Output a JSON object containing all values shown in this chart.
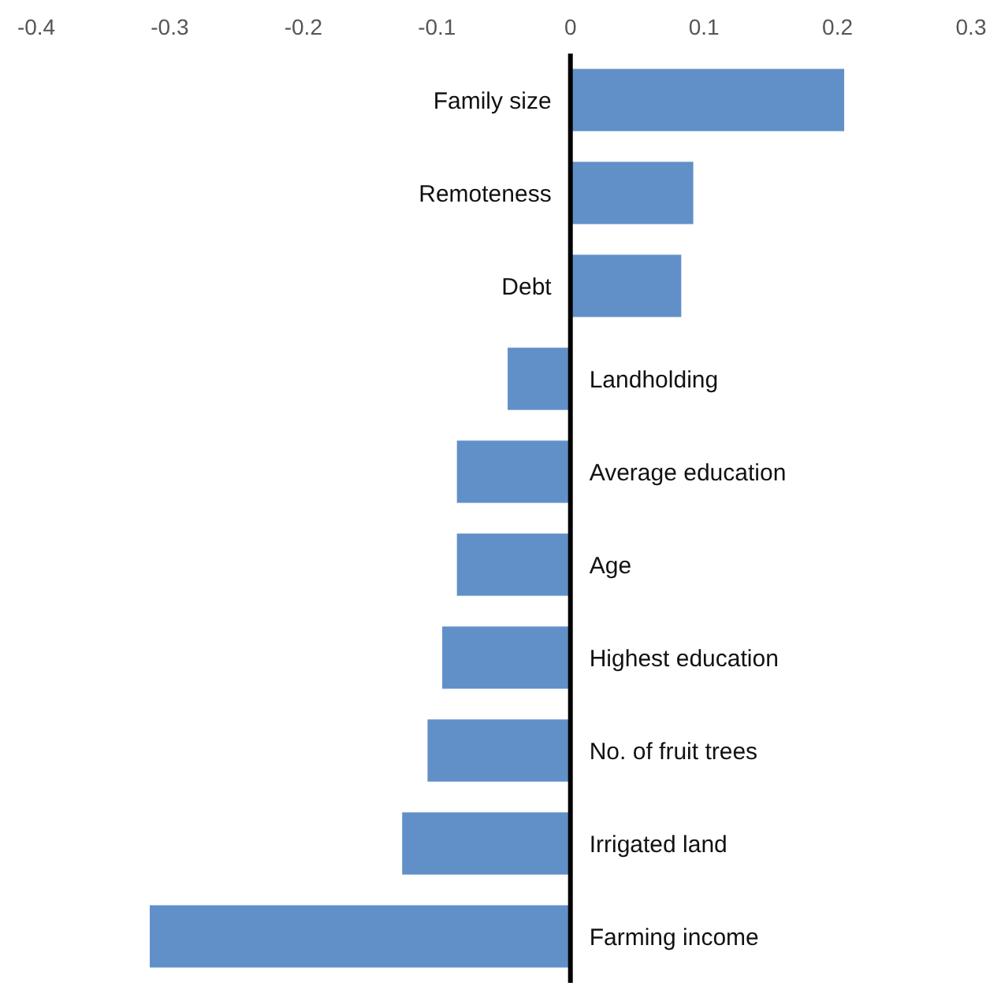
{
  "chart_data": {
    "type": "bar",
    "orientation": "horizontal",
    "categories": [
      "Family size",
      "Remoteness",
      "Debt",
      "Landholding",
      "Average education",
      "Age",
      "Highest education",
      "No. of fruit trees",
      "Irrigated land",
      "Farming income"
    ],
    "values": [
      0.205,
      0.092,
      0.083,
      -0.047,
      -0.085,
      -0.085,
      -0.096,
      -0.107,
      -0.126,
      -0.315
    ],
    "color": "#6190c8",
    "xlim": [
      -0.4,
      0.3
    ],
    "xticks": [
      -0.4,
      -0.3,
      -0.2,
      -0.1,
      0,
      0.1,
      0.2,
      0.3
    ],
    "grid": false
  }
}
